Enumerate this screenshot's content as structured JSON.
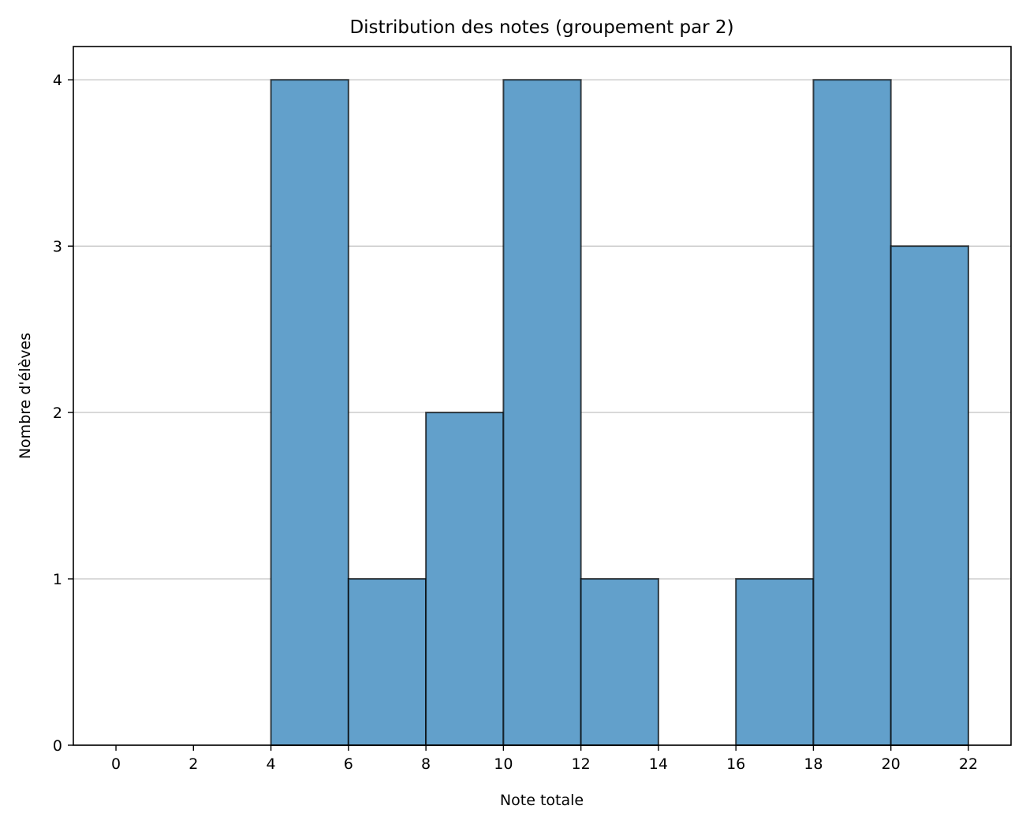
{
  "chart_data": {
    "type": "bar",
    "title": "Distribution des notes (groupement par 2)",
    "xlabel": "Note totale",
    "ylabel": "Nombre d'élèves",
    "bin_width": 2,
    "bins": [
      {
        "start": 0,
        "end": 2,
        "count": 0
      },
      {
        "start": 2,
        "end": 4,
        "count": 0
      },
      {
        "start": 4,
        "end": 6,
        "count": 4
      },
      {
        "start": 6,
        "end": 8,
        "count": 1
      },
      {
        "start": 8,
        "end": 10,
        "count": 2
      },
      {
        "start": 10,
        "end": 12,
        "count": 4
      },
      {
        "start": 12,
        "end": 14,
        "count": 1
      },
      {
        "start": 14,
        "end": 16,
        "count": 0
      },
      {
        "start": 16,
        "end": 18,
        "count": 1
      },
      {
        "start": 18,
        "end": 20,
        "count": 4
      },
      {
        "start": 20,
        "end": 22,
        "count": 3
      }
    ],
    "xlim": [
      -1.1,
      23.1
    ],
    "ylim": [
      0,
      4.2
    ],
    "x_ticks": [
      0,
      2,
      4,
      6,
      8,
      10,
      12,
      14,
      16,
      18,
      20,
      22
    ],
    "y_ticks": [
      0,
      1,
      2,
      3,
      4
    ],
    "grid": "y",
    "legend": "none",
    "colors": {
      "bar_fill": "#62a0cb",
      "bar_edge": "#000000",
      "grid": "#c8c8c8",
      "axes": "#000000"
    }
  }
}
